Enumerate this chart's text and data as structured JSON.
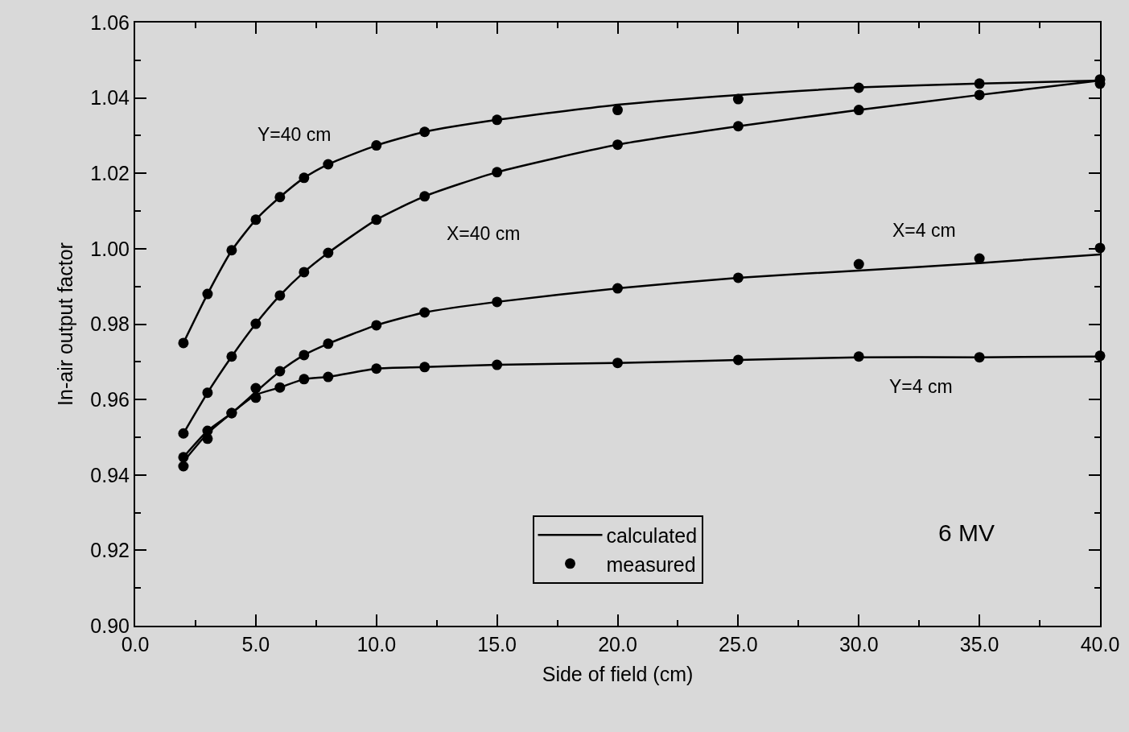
{
  "chart_data": {
    "type": "line",
    "xlabel": "Side of field (cm)",
    "ylabel": "In-air output factor",
    "xlim": [
      0,
      40
    ],
    "ylim": [
      0.9,
      1.06
    ],
    "xticks": [
      {
        "value": 0,
        "label": "0.0"
      },
      {
        "value": 5,
        "label": "5.0"
      },
      {
        "value": 10,
        "label": "10.0"
      },
      {
        "value": 15,
        "label": "15.0"
      },
      {
        "value": 20,
        "label": "20.0"
      },
      {
        "value": 25,
        "label": "25.0"
      },
      {
        "value": 30,
        "label": "30.0"
      },
      {
        "value": 35,
        "label": "35.0"
      },
      {
        "value": 40,
        "label": "40.0"
      }
    ],
    "yticks": [
      {
        "value": 0.9,
        "label": "0.90"
      },
      {
        "value": 0.92,
        "label": "0.92"
      },
      {
        "value": 0.94,
        "label": "0.94"
      },
      {
        "value": 0.96,
        "label": "0.96"
      },
      {
        "value": 0.98,
        "label": "0.98"
      },
      {
        "value": 1.0,
        "label": "1.00"
      },
      {
        "value": 1.02,
        "label": "1.02"
      },
      {
        "value": 1.04,
        "label": "1.04"
      },
      {
        "value": 1.06,
        "label": "1.06"
      }
    ],
    "grid": false,
    "legend": "bottom",
    "series": [
      {
        "name": "calculated",
        "color": "#000000",
        "marker": "none",
        "line_style": "solid",
        "x": [
          2,
          3,
          4,
          5,
          6,
          7,
          8,
          10,
          12,
          15,
          20,
          25,
          30,
          35,
          40
        ],
        "values": [
          0.975,
          0.988,
          0.9995,
          1.0077,
          1.0137,
          1.0188,
          1.0224,
          1.0274,
          1.031,
          1.0342,
          1.0382,
          1.0408,
          1.0428,
          1.0438,
          1.0446
        ]
      },
      {
        "type": "line",
        "color": "#000000",
        "marker": "none",
        "line_style": "solid",
        "x": [
          2,
          3,
          4,
          5,
          6,
          7,
          8,
          10,
          12,
          15,
          20,
          25,
          30,
          35,
          40
        ],
        "values": [
          0.951,
          0.9618,
          0.9714,
          0.9801,
          0.9876,
          0.9938,
          0.9989,
          1.0077,
          1.0139,
          1.0203,
          1.0276,
          1.0325,
          1.0368,
          1.0408,
          1.0446
        ]
      },
      {
        "type": "line",
        "color": "#000000",
        "marker": "none",
        "line_style": "solid",
        "x": [
          2,
          3,
          4,
          5,
          6,
          7,
          8,
          10,
          12,
          15,
          20,
          25,
          30,
          35,
          40
        ],
        "values": [
          0.9447,
          0.9517,
          0.9564,
          0.962,
          0.9675,
          0.9718,
          0.9748,
          0.9797,
          0.9831,
          0.9859,
          0.9895,
          0.9923,
          0.9942,
          0.9962,
          0.9985
        ]
      },
      {
        "type": "line",
        "color": "#000000",
        "marker": "none",
        "line_style": "solid",
        "x": [
          2,
          3,
          4,
          5,
          6,
          7,
          8,
          10,
          12,
          15,
          20,
          25,
          30,
          35,
          40
        ],
        "values": [
          0.9435,
          0.951,
          0.9564,
          0.9612,
          0.9632,
          0.9654,
          0.966,
          0.9682,
          0.9686,
          0.9692,
          0.9697,
          0.9705,
          0.9712,
          0.9712,
          0.9714
        ]
      },
      {
        "type": "scatter",
        "name": "measured",
        "color": "#000000",
        "marker": "circle",
        "x": [
          2,
          3,
          4,
          5,
          6,
          7,
          8,
          10,
          12,
          15,
          20,
          25,
          30,
          35,
          40
        ],
        "values": [
          0.975,
          0.988,
          0.9996,
          1.0077,
          1.0137,
          1.0188,
          1.0224,
          1.0274,
          1.031,
          1.0342,
          1.0368,
          1.0397,
          1.0427,
          1.0438,
          1.0449
        ]
      },
      {
        "type": "scatter",
        "color": "#000000",
        "marker": "circle",
        "x": [
          2,
          3,
          4,
          5,
          6,
          7,
          8,
          10,
          12,
          15,
          20,
          25,
          30,
          35,
          40
        ],
        "values": [
          0.951,
          0.9618,
          0.9714,
          0.9801,
          0.9876,
          0.9938,
          0.9989,
          1.0077,
          1.0139,
          1.0203,
          1.0276,
          1.0325,
          1.0368,
          1.0408,
          1.0438
        ]
      },
      {
        "type": "scatter",
        "color": "#000000",
        "marker": "circle",
        "x": [
          2,
          3,
          4,
          5,
          6,
          7,
          8,
          10,
          12,
          15,
          20,
          25,
          30,
          35,
          40
        ],
        "values": [
          0.9447,
          0.9517,
          0.9564,
          0.963,
          0.9675,
          0.9718,
          0.9748,
          0.9797,
          0.9831,
          0.9859,
          0.9895,
          0.9923,
          0.9959,
          0.9974,
          1.0002
        ]
      },
      {
        "type": "scatter",
        "color": "#000000",
        "marker": "circle",
        "x": [
          2,
          3,
          4,
          5,
          6,
          7,
          8,
          10,
          12,
          15,
          20,
          25,
          30,
          35,
          40
        ],
        "values": [
          0.9423,
          0.9496,
          0.9564,
          0.9605,
          0.9632,
          0.9654,
          0.966,
          0.9682,
          0.9686,
          0.9692,
          0.9697,
          0.9705,
          0.9714,
          0.9712,
          0.9716
        ]
      }
    ],
    "annotations": [
      "Y=40 cm",
      "X=40 cm",
      "X=4 cm",
      "Y=4 cm",
      "6 MV"
    ]
  }
}
